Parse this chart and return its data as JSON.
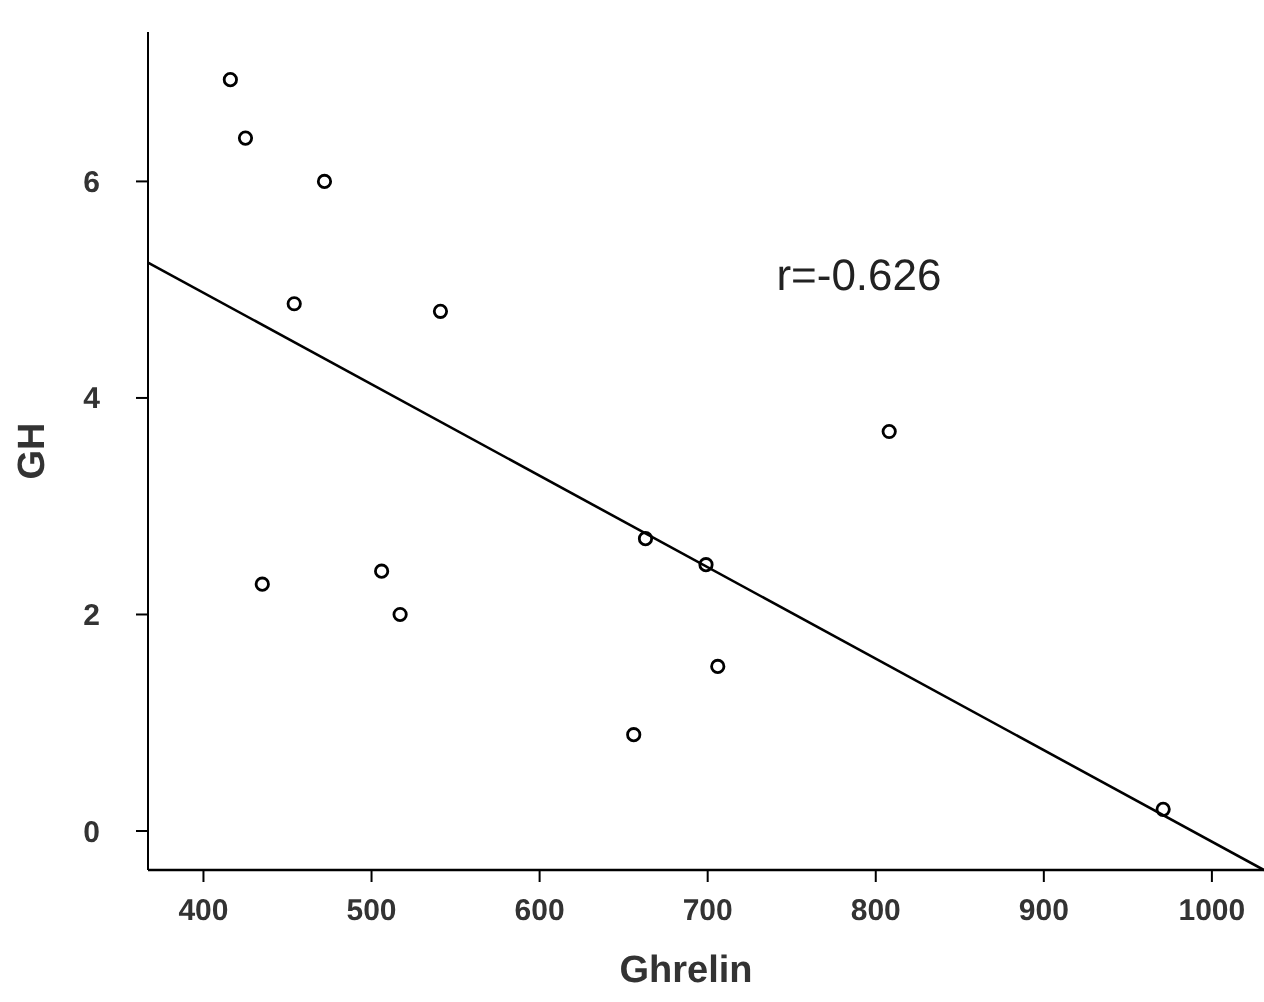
{
  "chart_data": {
    "type": "scatter",
    "xlabel": "Ghrelin",
    "ylabel": "GH",
    "annotations": [
      "r=-0.626"
    ],
    "xlim": [
      367,
      1031
    ],
    "ylim": [
      -0.36,
      7.38
    ],
    "xticks": [
      400,
      500,
      600,
      700,
      800,
      900,
      1000
    ],
    "yticks": [
      0,
      2,
      4,
      6
    ],
    "grid": false,
    "series": [
      {
        "color": "#000000",
        "marker": "circle",
        "x": [
          416,
          425,
          472,
          454,
          541,
          435,
          506,
          517,
          656,
          663,
          699,
          706,
          808,
          971
        ],
        "values": [
          6.94,
          6.4,
          6.0,
          4.87,
          4.8,
          2.28,
          2.4,
          2.0,
          0.89,
          2.7,
          2.46,
          1.52,
          3.69,
          0.2
        ]
      },
      {
        "type": "line",
        "color": "#000000",
        "x": [
          367,
          1031
        ],
        "values": [
          5.25,
          -0.36
        ]
      }
    ]
  }
}
